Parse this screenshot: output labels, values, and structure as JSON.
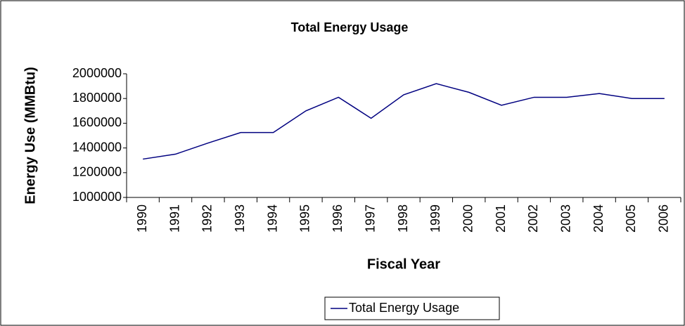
{
  "chart_data": {
    "type": "line",
    "title": "Total Energy Usage",
    "x_label": "Fiscal Year",
    "y_label": "Energy Use (MMBtu)",
    "categories": [
      "1990",
      "1991",
      "1992",
      "1993",
      "1994",
      "1995",
      "1996",
      "1997",
      "1998",
      "1999",
      "2000",
      "2001",
      "2002",
      "2003",
      "2004",
      "2005",
      "2006"
    ],
    "series": [
      {
        "name": "Total Energy Usage",
        "color": "#000080",
        "values": [
          1310000,
          1350000,
          1440000,
          1525000,
          1525000,
          1700000,
          1810000,
          1640000,
          1830000,
          1920000,
          1850000,
          1745000,
          1810000,
          1810000,
          1840000,
          1800000,
          1800000
        ]
      }
    ],
    "ylim": [
      1000000,
      2000000
    ],
    "yticks": [
      1000000,
      1200000,
      1400000,
      1600000,
      1800000,
      2000000
    ],
    "grid": false,
    "legend": "bottom"
  }
}
